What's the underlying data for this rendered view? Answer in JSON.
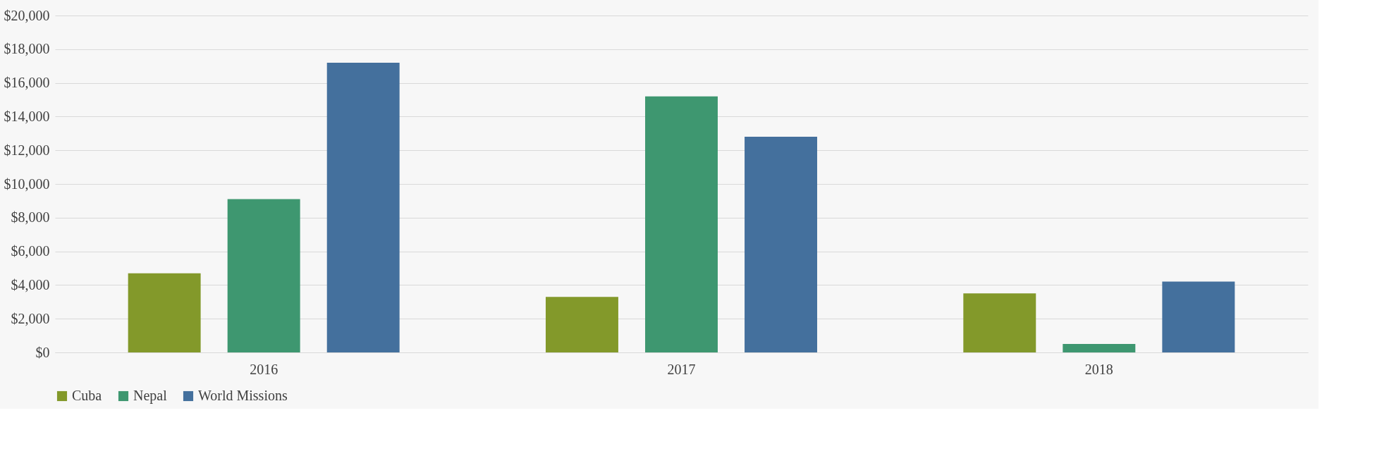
{
  "chart_data": {
    "type": "bar",
    "categories": [
      "2016",
      "2017",
      "2018"
    ],
    "series": [
      {
        "name": "Cuba",
        "color": "#83992a",
        "values": [
          4700,
          3300,
          3500
        ]
      },
      {
        "name": "Nepal",
        "color": "#3e9770",
        "values": [
          9100,
          15200,
          500
        ]
      },
      {
        "name": "World Missions",
        "color": "#44709d",
        "values": [
          17200,
          12800,
          4200
        ]
      }
    ],
    "ylim": [
      0,
      20000
    ],
    "yticks": [
      {
        "value": 0,
        "label": "$0"
      },
      {
        "value": 2000,
        "label": "$2,000"
      },
      {
        "value": 4000,
        "label": "$4,000"
      },
      {
        "value": 6000,
        "label": "$6,000"
      },
      {
        "value": 8000,
        "label": "$8,000"
      },
      {
        "value": 10000,
        "label": "$10,000"
      },
      {
        "value": 12000,
        "label": "$12,000"
      },
      {
        "value": 14000,
        "label": "$14,000"
      },
      {
        "value": 16000,
        "label": "$16,000"
      },
      {
        "value": 18000,
        "label": "$18,000"
      },
      {
        "value": 20000,
        "label": "$20,000"
      }
    ],
    "grid": "y",
    "legend": "bottom"
  }
}
